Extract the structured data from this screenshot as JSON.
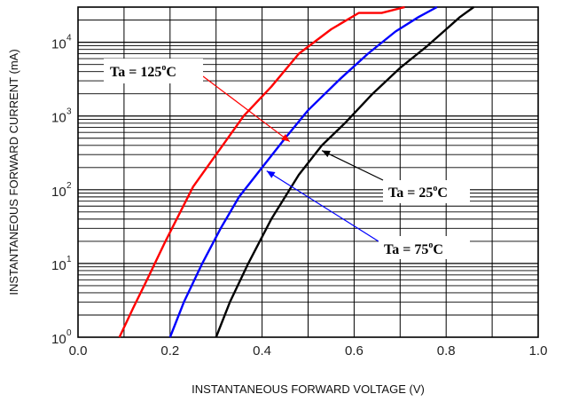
{
  "chart_data": {
    "type": "line",
    "title": "",
    "xlabel": "INSTANTANEOUS FORWARD VOLTAGE (V)",
    "ylabel": "INSTANTANEOUS FORWARD CURRENT (mA)",
    "xlim": [
      0.0,
      1.0
    ],
    "ylim": [
      1,
      30000
    ],
    "yscale": "log",
    "grid": true,
    "x_ticks": [
      "0.0",
      "0.2",
      "0.4",
      "0.6",
      "0.8",
      "1.0"
    ],
    "y_ticks": [
      {
        "base": "10",
        "exp": "0",
        "value": 1
      },
      {
        "base": "10",
        "exp": "1",
        "value": 10
      },
      {
        "base": "10",
        "exp": "2",
        "value": 100
      },
      {
        "base": "10",
        "exp": "3",
        "value": 1000
      },
      {
        "base": "10",
        "exp": "4",
        "value": 10000
      }
    ],
    "series": [
      {
        "label": "Ta = 125 °C",
        "label_main": "Ta = 125",
        "label_deg": "o",
        "label_unit": "C",
        "color": "#ff0000",
        "x": [
          0.09,
          0.12,
          0.15,
          0.19,
          0.25,
          0.3,
          0.36,
          0.42,
          0.48,
          0.55,
          0.61,
          0.66,
          0.71
        ],
        "y": [
          1,
          2.5,
          6,
          20,
          110,
          300,
          1000,
          2500,
          7000,
          15000,
          25000,
          25000,
          30000
        ]
      },
      {
        "label": "Ta = 75 °C",
        "label_main": "Ta = 75",
        "label_deg": "o",
        "label_unit": "C",
        "color": "#0000ff",
        "x": [
          0.2,
          0.23,
          0.27,
          0.31,
          0.35,
          0.4,
          0.45,
          0.5,
          0.57,
          0.63,
          0.69,
          0.74,
          0.78
        ],
        "y": [
          1,
          3,
          10,
          30,
          80,
          200,
          500,
          1200,
          3200,
          7000,
          14000,
          22000,
          30000
        ]
      },
      {
        "label": "Ta = 25 °C",
        "label_main": "Ta = 25",
        "label_deg": "o",
        "label_unit": "C",
        "color": "#000000",
        "x": [
          0.3,
          0.33,
          0.37,
          0.42,
          0.48,
          0.53,
          0.58,
          0.64,
          0.7,
          0.76,
          0.8,
          0.83,
          0.86
        ],
        "y": [
          1,
          3,
          10,
          40,
          160,
          400,
          800,
          2000,
          4500,
          9000,
          15000,
          22000,
          30000
        ]
      }
    ]
  }
}
